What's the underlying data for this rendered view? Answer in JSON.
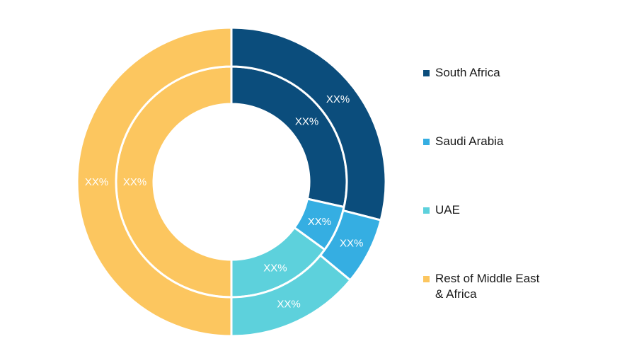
{
  "chart_data": {
    "type": "donut",
    "rings": [
      {
        "name": "",
        "segments": [
          {
            "category": "South Africa",
            "value": 28.5,
            "label": "XX%"
          },
          {
            "category": "Saudi Arabia",
            "value": 6.5,
            "label": "XX%"
          },
          {
            "category": "UAE",
            "value": 15.0,
            "label": "XX%"
          },
          {
            "category": "Rest of Middle East & Africa",
            "value": 50.0,
            "label": "XX%"
          }
        ]
      },
      {
        "name": "",
        "segments": [
          {
            "category": "South Africa",
            "value": 29.0,
            "label": "XX%"
          },
          {
            "category": "Saudi Arabia",
            "value": 7.0,
            "label": "XX%"
          },
          {
            "category": "UAE",
            "value": 14.0,
            "label": "XX%"
          },
          {
            "category": "Rest of Middle East & Africa",
            "value": 50.0,
            "label": "XX%"
          }
        ]
      }
    ],
    "legend": {
      "position": "right",
      "items": [
        {
          "label": "South Africa",
          "color": "#0b4d7c"
        },
        {
          "label": "Saudi Arabia",
          "color": "#35aee2"
        },
        {
          "label": "UAE",
          "color": "#5dd1dc"
        },
        {
          "label": "Rest of Middle East & Africa",
          "color": "#fcc65f"
        }
      ]
    }
  }
}
